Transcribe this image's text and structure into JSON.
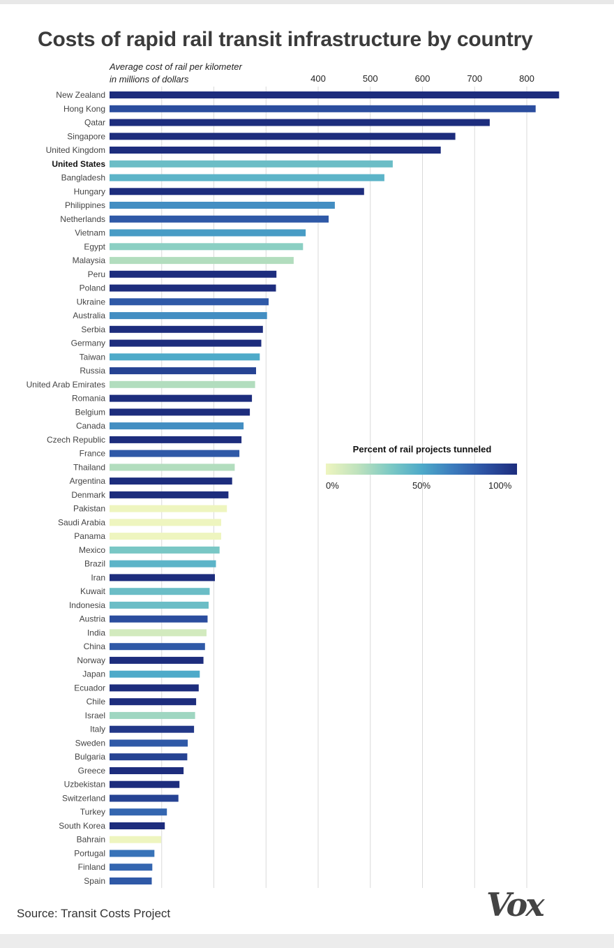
{
  "page": {
    "title": "Costs of rapid rail transit infrastructure by country",
    "source": "Source: Transit Costs Project",
    "logo_text": "Vox"
  },
  "chart_data": {
    "type": "bar",
    "orientation": "horizontal",
    "title": "Costs of rapid rail transit infrastructure by country",
    "axis_label_line1": "Average cost of rail per kilometer",
    "axis_label_line2": "in millions of dollars",
    "xlim": [
      0,
      880
    ],
    "x_ticks": [
      400,
      500,
      600,
      700,
      800
    ],
    "x_tick_labels": [
      "400",
      "500",
      "600",
      "700",
      "800"
    ],
    "gridlines_at": [
      100,
      200,
      300,
      400,
      500,
      600,
      700,
      800
    ],
    "highlight_category": "United States",
    "categories": [
      "New Zealand",
      "Hong Kong",
      "Qatar",
      "Singapore",
      "United Kingdom",
      "United States",
      "Bangladesh",
      "Hungary",
      "Philippines",
      "Netherlands",
      "Vietnam",
      "Egypt",
      "Malaysia",
      "Peru",
      "Poland",
      "Ukraine",
      "Australia",
      "Serbia",
      "Germany",
      "Taiwan",
      "Russia",
      "United Arab Emirates",
      "Romania",
      "Belgium",
      "Canada",
      "Czech Republic",
      "France",
      "Thailand",
      "Argentina",
      "Denmark",
      "Pakistan",
      "Saudi Arabia",
      "Panama",
      "Mexico",
      "Brazil",
      "Iran",
      "Kuwait",
      "Indonesia",
      "Austria",
      "India",
      "China",
      "Norway",
      "Japan",
      "Ecuador",
      "Chile",
      "Israel",
      "Italy",
      "Sweden",
      "Bulgaria",
      "Greece",
      "Uzbekistan",
      "Switzerland",
      "Turkey",
      "South Korea",
      "Bahrain",
      "Portugal",
      "Finland",
      "Spain"
    ],
    "values": [
      862,
      817,
      729,
      663,
      635,
      543,
      527,
      488,
      432,
      420,
      376,
      371,
      353,
      320,
      319,
      305,
      302,
      294,
      291,
      288,
      281,
      279,
      273,
      269,
      257,
      253,
      249,
      240,
      235,
      228,
      225,
      214,
      214,
      211,
      204,
      202,
      192,
      190,
      188,
      186,
      183,
      180,
      173,
      171,
      166,
      164,
      162,
      150,
      149,
      142,
      134,
      132,
      110,
      106,
      99,
      86,
      82,
      81
    ],
    "percent_tunneled": [
      100,
      85,
      100,
      100,
      100,
      40,
      45,
      100,
      60,
      80,
      55,
      30,
      20,
      100,
      100,
      80,
      60,
      100,
      100,
      50,
      90,
      20,
      100,
      100,
      60,
      100,
      80,
      20,
      100,
      100,
      0,
      0,
      0,
      35,
      45,
      100,
      40,
      40,
      85,
      10,
      80,
      100,
      50,
      100,
      100,
      25,
      95,
      80,
      90,
      100,
      100,
      90,
      75,
      100,
      0,
      70,
      75,
      80
    ],
    "legend": {
      "title": "Percent of rail projects tunneled",
      "min_label": "0%",
      "mid_label": "50%",
      "max_label": "100%",
      "colors": [
        "#eef5bf",
        "#bfe2bd",
        "#7ecac4",
        "#4eaac9",
        "#3b7bbd",
        "#2c51a2",
        "#1d2d7d"
      ]
    }
  }
}
